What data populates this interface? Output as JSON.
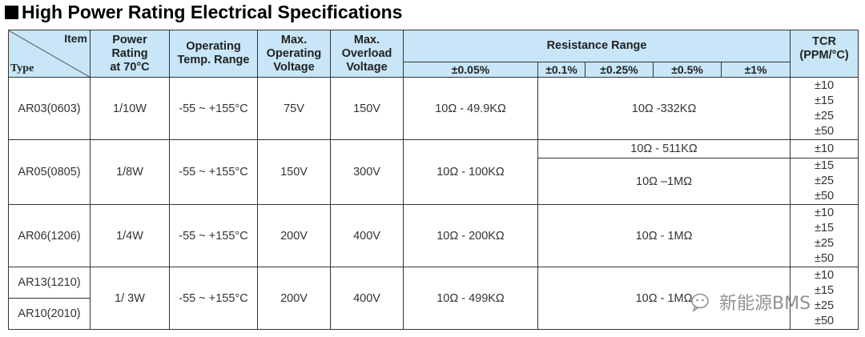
{
  "title": "High Power Rating Electrical Specifications",
  "header": {
    "item": "Item",
    "type": "Type",
    "power_rating": [
      "Power",
      "Rating",
      "at 70°C"
    ],
    "operating_temp": [
      "Operating",
      "Temp. Range"
    ],
    "max_operating_voltage": [
      "Max.",
      "Operating",
      "Voltage"
    ],
    "max_overload_voltage": [
      "Max.",
      "Overload",
      "Voltage"
    ],
    "resistance_range": "Resistance Range",
    "tcr": [
      "TCR",
      "(PPM/°C)"
    ],
    "tolerances": [
      "±0.05%",
      "±0.1%",
      "±0.25%",
      "±0.5%",
      "±1%"
    ]
  },
  "rows": {
    "ar03": {
      "type": "AR03(0603)",
      "power": "1/10W",
      "temp": "-55 ~ +155°C",
      "op_voltage": "75V",
      "ol_voltage": "150V",
      "r005": "10Ω - 49.9KΩ",
      "r_rest": "10Ω -332KΩ",
      "tcr": [
        "±10",
        "±15",
        "±25",
        "±50"
      ]
    },
    "ar05": {
      "type": "AR05(0805)",
      "power": "1/8W",
      "temp": "-55 ~ +155°C",
      "op_voltage": "150V",
      "ol_voltage": "300V",
      "r005": "10Ω - 100KΩ",
      "r_rest_a": "10Ω - 511KΩ",
      "tcr_a": "±10",
      "r_rest_b": "10Ω –1MΩ",
      "tcr_b": [
        "±15",
        "±25",
        "±50"
      ]
    },
    "ar06": {
      "type": "AR06(1206)",
      "power": "1/4W",
      "temp": "-55 ~ +155°C",
      "op_voltage": "200V",
      "ol_voltage": "400V",
      "r005": "10Ω - 200KΩ",
      "r_rest": "10Ω - 1MΩ",
      "tcr": [
        "±10",
        "±15",
        "±25",
        "±50"
      ]
    },
    "ar13": {
      "type_a": "AR13(1210)",
      "type_b": "AR10(2010)",
      "power": "1/ 3W",
      "temp": "-55 ~ +155°C",
      "op_voltage": "200V",
      "ol_voltage": "400V",
      "r005": "10Ω - 499KΩ",
      "r_rest": "10Ω - 1MΩ",
      "tcr": [
        "±10",
        "±15",
        "±25",
        "±50"
      ]
    }
  },
  "watermark": "新能源BMS",
  "colors": {
    "header_bg": "#c8e6f8",
    "border": "#333333"
  }
}
